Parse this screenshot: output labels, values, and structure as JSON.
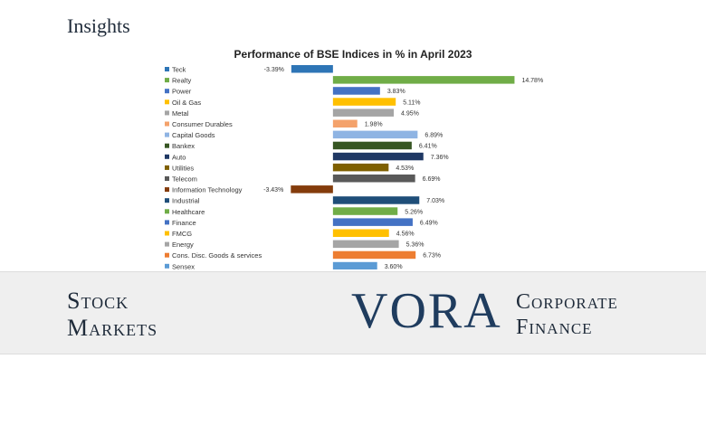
{
  "page": {
    "heading": "Insights",
    "stock_line1": "Stock",
    "stock_line2": "Markets",
    "brand": "VORA",
    "corp_line1": "Corporate",
    "corp_line2": "Finance"
  },
  "chart_data": {
    "type": "bar",
    "orientation": "horizontal",
    "title": "Performance of BSE Indices in % in April 2023",
    "xlabel": "",
    "ylabel": "",
    "xlim": [
      -5,
      16
    ],
    "grid": false,
    "legend_position": "left",
    "categories": [
      "Teck",
      "Realty",
      "Power",
      "Oil & Gas",
      "Metal",
      "Consumer Durables",
      "Capital Goods",
      "Bankex",
      "Auto",
      "Utilities",
      "Telecom",
      "Information Technology",
      "Industrial",
      "Healthcare",
      "Finance",
      "FMCG",
      "Energy",
      "Cons. Disc. Goods & services",
      "Sensex"
    ],
    "values": [
      -3.39,
      14.78,
      3.83,
      5.11,
      4.95,
      1.98,
      6.89,
      6.41,
      7.36,
      4.53,
      6.69,
      -3.43,
      7.03,
      5.26,
      6.49,
      4.56,
      5.36,
      6.73,
      3.6
    ],
    "value_labels": [
      "-3.39%",
      "14.78%",
      "3.83%",
      "5.11%",
      "4.95%",
      "1.98%",
      "6.89%",
      "6.41%",
      "7.36%",
      "4.53%",
      "6.69%",
      "-3.43%",
      "7.03%",
      "5.26%",
      "6.49%",
      "4.56%",
      "5.36%",
      "6.73%",
      "3.60%"
    ],
    "colors": [
      "#2e75b6",
      "#70ad47",
      "#4472c4",
      "#ffc000",
      "#a5a5a5",
      "#f4a26b",
      "#8fb4e3",
      "#375623",
      "#1f3864",
      "#7f6000",
      "#595959",
      "#843c0c",
      "#1f4e79",
      "#70ad47",
      "#4472c4",
      "#ffc000",
      "#a5a5a5",
      "#ed7d31",
      "#5b9bd5"
    ]
  }
}
